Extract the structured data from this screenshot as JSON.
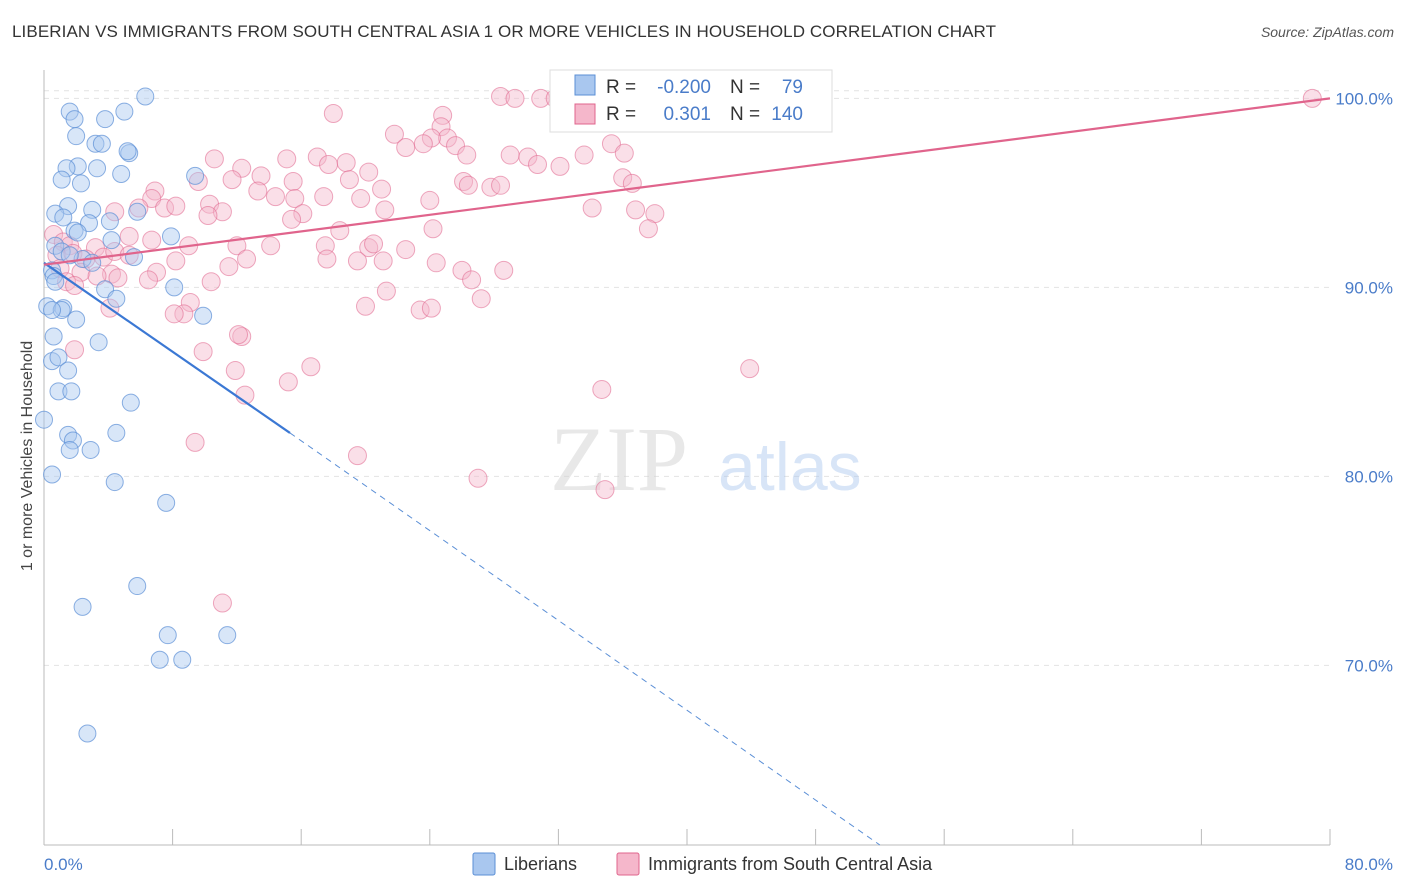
{
  "title": "LIBERIAN VS IMMIGRANTS FROM SOUTH CENTRAL ASIA 1 OR MORE VEHICLES IN HOUSEHOLD CORRELATION CHART",
  "source": "Source: ZipAtlas.com",
  "watermark_main": "ZIP",
  "watermark_sub": "atlas",
  "colors": {
    "blue": "#5b8fd6",
    "blue_fill": "#a9c7ef",
    "pink": "#e0648c",
    "pink_fill": "#f5b7cb",
    "tick": "#4a7cc9",
    "grid": "#e2e2e2"
  },
  "legend": {
    "r_label": "R =",
    "n_label": "N =",
    "blue_r": "-0.200",
    "blue_n": "79",
    "pink_r": "0.301",
    "pink_n": "140"
  },
  "chart_data": {
    "type": "scatter",
    "title": "LIBERIAN VS IMMIGRANTS FROM SOUTH CENTRAL ASIA 1 OR MORE VEHICLES IN HOUSEHOLD CORRELATION CHART",
    "xlabel": "",
    "ylabel": "1 or more Vehicles in Household",
    "xlim": [
      0,
      80
    ],
    "ylim": [
      60.5,
      101.5
    ],
    "x_tick_labels": [
      "0.0%",
      "80.0%"
    ],
    "y_ticks": [
      70,
      80,
      90,
      100
    ],
    "y_tick_labels": [
      "70.0%",
      "80.0%",
      "90.0%",
      "100.0%"
    ],
    "series": [
      {
        "name": "Liberians",
        "color": "blue",
        "r": -0.2,
        "n": 79,
        "trend": {
          "x0": 0,
          "y0": 91.3,
          "x1": 15.3,
          "y1": 82.3,
          "dash_x1": 52,
          "dash_y1": 60.5
        },
        "points": [
          [
            6.3,
            100.1
          ],
          [
            1.6,
            99.3
          ],
          [
            5.0,
            99.3
          ],
          [
            1.9,
            98.9
          ],
          [
            3.8,
            98.9
          ],
          [
            2.0,
            98.0
          ],
          [
            3.2,
            97.6
          ],
          [
            3.6,
            97.6
          ],
          [
            5.3,
            97.1
          ],
          [
            5.2,
            97.2
          ],
          [
            2.1,
            96.4
          ],
          [
            1.4,
            96.3
          ],
          [
            3.3,
            96.3
          ],
          [
            4.8,
            96.0
          ],
          [
            1.1,
            95.7
          ],
          [
            2.3,
            95.5
          ],
          [
            9.4,
            95.9
          ],
          [
            1.5,
            94.3
          ],
          [
            3.0,
            94.1
          ],
          [
            0.7,
            93.9
          ],
          [
            1.2,
            93.7
          ],
          [
            2.8,
            93.4
          ],
          [
            5.8,
            94.0
          ],
          [
            4.1,
            93.5
          ],
          [
            1.9,
            93.0
          ],
          [
            2.1,
            92.9
          ],
          [
            7.9,
            92.7
          ],
          [
            4.2,
            92.5
          ],
          [
            0.7,
            92.2
          ],
          [
            1.1,
            91.9
          ],
          [
            5.6,
            91.6
          ],
          [
            2.4,
            91.5
          ],
          [
            3.0,
            91.3
          ],
          [
            1.6,
            91.7
          ],
          [
            0.5,
            90.9
          ],
          [
            0.6,
            90.6
          ],
          [
            0.7,
            90.3
          ],
          [
            3.8,
            89.9
          ],
          [
            4.5,
            89.4
          ],
          [
            8.1,
            90.0
          ],
          [
            0.2,
            89.0
          ],
          [
            1.2,
            88.9
          ],
          [
            1.1,
            88.8
          ],
          [
            0.5,
            88.8
          ],
          [
            2.0,
            88.3
          ],
          [
            9.9,
            88.5
          ],
          [
            0.6,
            87.4
          ],
          [
            3.4,
            87.1
          ],
          [
            0.5,
            86.1
          ],
          [
            0.9,
            86.3
          ],
          [
            1.5,
            85.6
          ],
          [
            0.9,
            84.5
          ],
          [
            1.7,
            84.5
          ],
          [
            5.4,
            83.9
          ],
          [
            0.0,
            83.0
          ],
          [
            1.5,
            82.2
          ],
          [
            4.5,
            82.3
          ],
          [
            1.8,
            81.9
          ],
          [
            1.6,
            81.4
          ],
          [
            2.9,
            81.4
          ],
          [
            0.5,
            80.1
          ],
          [
            4.4,
            79.7
          ],
          [
            7.6,
            78.6
          ],
          [
            5.8,
            74.2
          ],
          [
            2.4,
            73.1
          ],
          [
            7.7,
            71.6
          ],
          [
            11.4,
            71.6
          ],
          [
            7.2,
            70.3
          ],
          [
            8.6,
            70.3
          ],
          [
            2.7,
            66.4
          ]
        ]
      },
      {
        "name": "Immigrants from South Central Asia",
        "color": "pink",
        "r": 0.301,
        "n": 140,
        "trend": {
          "x0": 0,
          "y0": 91.2,
          "x1": 80,
          "y1": 100.0
        },
        "points": [
          [
            28.4,
            100.1
          ],
          [
            29.3,
            100.0
          ],
          [
            30.9,
            100.0
          ],
          [
            31.8,
            100.0
          ],
          [
            35.1,
            100.0
          ],
          [
            35.4,
            100.0
          ],
          [
            38.5,
            100.0
          ],
          [
            41.3,
            100.0
          ],
          [
            41.5,
            100.0
          ],
          [
            78.9,
            100.0
          ],
          [
            18.0,
            99.2
          ],
          [
            24.8,
            99.1
          ],
          [
            24.7,
            98.5
          ],
          [
            25.1,
            97.9
          ],
          [
            21.8,
            98.1
          ],
          [
            24.1,
            97.9
          ],
          [
            23.6,
            97.6
          ],
          [
            25.6,
            97.5
          ],
          [
            22.5,
            97.4
          ],
          [
            35.3,
            97.6
          ],
          [
            26.3,
            97.0
          ],
          [
            29.0,
            97.0
          ],
          [
            33.6,
            97.0
          ],
          [
            36.1,
            97.1
          ],
          [
            30.1,
            96.9
          ],
          [
            30.7,
            96.5
          ],
          [
            32.1,
            96.4
          ],
          [
            15.1,
            96.8
          ],
          [
            17.0,
            96.9
          ],
          [
            17.7,
            96.5
          ],
          [
            18.8,
            96.6
          ],
          [
            10.6,
            96.8
          ],
          [
            12.3,
            96.3
          ],
          [
            20.2,
            96.1
          ],
          [
            13.5,
            95.9
          ],
          [
            11.7,
            95.7
          ],
          [
            9.6,
            95.6
          ],
          [
            15.5,
            95.6
          ],
          [
            19.0,
            95.7
          ],
          [
            26.1,
            95.6
          ],
          [
            26.4,
            95.4
          ],
          [
            27.8,
            95.3
          ],
          [
            28.4,
            95.4
          ],
          [
            21.0,
            95.2
          ],
          [
            36.0,
            95.8
          ],
          [
            36.6,
            95.5
          ],
          [
            6.9,
            95.1
          ],
          [
            13.3,
            95.1
          ],
          [
            14.4,
            94.8
          ],
          [
            15.6,
            94.7
          ],
          [
            17.4,
            94.8
          ],
          [
            19.7,
            94.7
          ],
          [
            24.0,
            94.6
          ],
          [
            6.7,
            94.7
          ],
          [
            5.9,
            94.2
          ],
          [
            7.5,
            94.2
          ],
          [
            8.2,
            94.3
          ],
          [
            10.3,
            94.4
          ],
          [
            11.1,
            94.0
          ],
          [
            4.4,
            94.0
          ],
          [
            10.2,
            93.8
          ],
          [
            16.1,
            93.9
          ],
          [
            21.2,
            94.1
          ],
          [
            36.8,
            94.1
          ],
          [
            38.0,
            93.9
          ],
          [
            34.1,
            94.2
          ],
          [
            15.4,
            93.6
          ],
          [
            18.4,
            93.0
          ],
          [
            24.2,
            93.1
          ],
          [
            37.6,
            93.1
          ],
          [
            0.6,
            92.8
          ],
          [
            1.2,
            92.4
          ],
          [
            5.3,
            92.7
          ],
          [
            6.7,
            92.5
          ],
          [
            9.0,
            92.2
          ],
          [
            1.6,
            92.2
          ],
          [
            3.2,
            92.1
          ],
          [
            12.0,
            92.2
          ],
          [
            14.1,
            92.2
          ],
          [
            17.5,
            92.2
          ],
          [
            20.2,
            92.1
          ],
          [
            20.5,
            92.3
          ],
          [
            22.5,
            92.0
          ],
          [
            0.8,
            91.7
          ],
          [
            1.8,
            91.8
          ],
          [
            2.6,
            91.5
          ],
          [
            3.7,
            91.6
          ],
          [
            4.4,
            91.9
          ],
          [
            5.3,
            91.7
          ],
          [
            8.2,
            91.4
          ],
          [
            12.6,
            91.5
          ],
          [
            17.6,
            91.5
          ],
          [
            19.5,
            91.4
          ],
          [
            21.1,
            91.4
          ],
          [
            24.4,
            91.3
          ],
          [
            1.0,
            91.0
          ],
          [
            2.3,
            90.8
          ],
          [
            4.2,
            90.7
          ],
          [
            7.0,
            90.8
          ],
          [
            11.5,
            91.1
          ],
          [
            26.0,
            90.9
          ],
          [
            28.6,
            90.9
          ],
          [
            3.3,
            90.6
          ],
          [
            4.6,
            90.5
          ],
          [
            6.5,
            90.4
          ],
          [
            10.4,
            90.3
          ],
          [
            1.4,
            90.3
          ],
          [
            1.9,
            90.1
          ],
          [
            26.6,
            90.4
          ],
          [
            21.3,
            89.8
          ],
          [
            9.1,
            89.2
          ],
          [
            20.0,
            89.0
          ],
          [
            23.4,
            88.8
          ],
          [
            24.1,
            88.9
          ],
          [
            27.2,
            89.4
          ],
          [
            4.1,
            88.9
          ],
          [
            8.7,
            88.6
          ],
          [
            8.1,
            88.6
          ],
          [
            12.3,
            87.4
          ],
          [
            12.1,
            87.5
          ],
          [
            1.9,
            86.7
          ],
          [
            9.9,
            86.6
          ],
          [
            16.6,
            85.8
          ],
          [
            11.9,
            85.6
          ],
          [
            15.2,
            85.0
          ],
          [
            12.5,
            84.3
          ],
          [
            34.7,
            84.6
          ],
          [
            43.9,
            85.7
          ],
          [
            9.4,
            81.8
          ],
          [
            19.5,
            81.1
          ],
          [
            27.0,
            79.9
          ],
          [
            34.9,
            79.3
          ],
          [
            11.1,
            73.3
          ]
        ]
      }
    ]
  },
  "bottom_legend": {
    "blue_label": "Liberians",
    "pink_label": "Immigrants from South Central Asia"
  }
}
